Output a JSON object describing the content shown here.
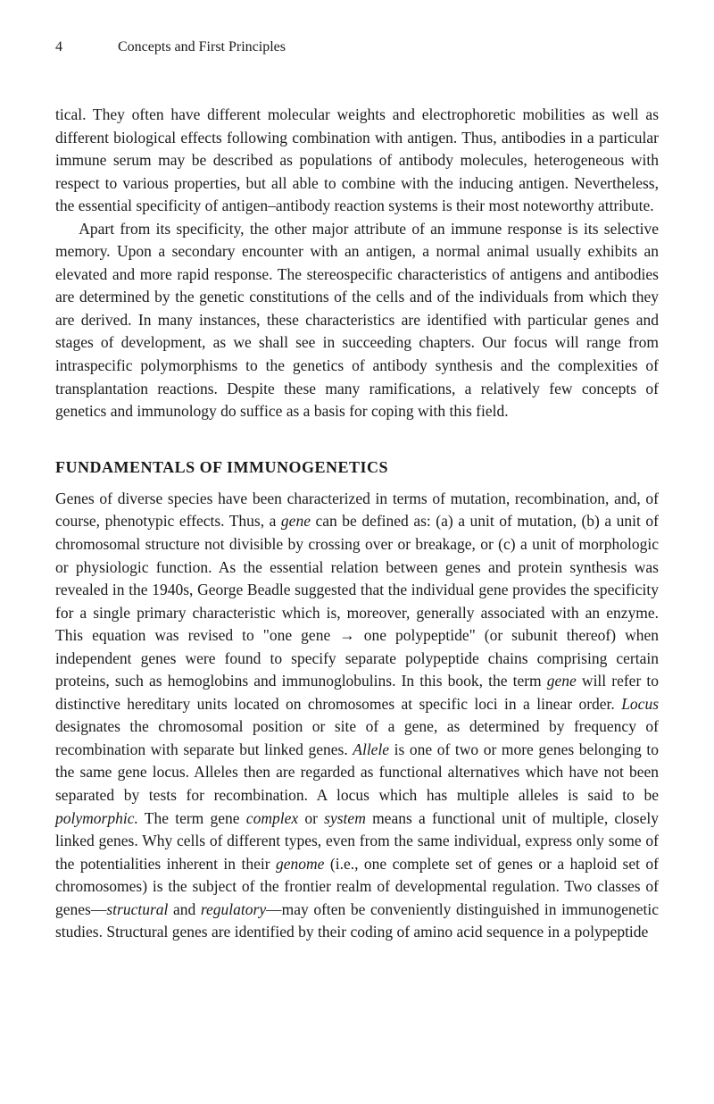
{
  "header": {
    "page_number": "4",
    "chapter_title": "Concepts and First Principles"
  },
  "content": {
    "para1_part1": "tical. They often have different molecular weights and electrophoretic mobilities as well as different biological effects following combination with antigen. Thus, antibodies in a particular immune serum may be described as populations of antibody molecules, heterogeneous with respect to various properties, but all able to combine with the inducing antigen. Nevertheless, the essential specificity of antigen–antibody reaction systems is their most noteworthy attribute.",
    "para2": "Apart from its specificity, the other major attribute of an immune response is its selective memory. Upon a secondary encounter with an antigen, a normal animal usually exhibits an elevated and more rapid response. The stereospecific characteristics of antigens and antibodies are determined by the genetic constitutions of the cells and of the individuals from which they are derived. In many instances, these characteristics are identified with particular genes and stages of development, as we shall see in succeeding chapters. Our focus will range from intraspecific polymorphisms to the genetics of antibody synthesis and the complexities of transplantation reactions. Despite these many ramifications, a relatively few concepts of genetics and immunology do suffice as a basis for coping with this field.",
    "heading1": "FUNDAMENTALS OF IMMUNOGENETICS",
    "para3_seg1": "Genes of diverse species have been characterized in terms of mutation, recombination, and, of course, phenotypic effects. Thus, a ",
    "para3_gene1": "gene",
    "para3_seg2": " can be defined as: (a) a unit of mutation, (b) a unit of chromosomal structure not divisible by crossing over or breakage, or (c) a unit of morphologic or physiologic function. As the essential relation between genes and protein synthesis was revealed in the 1940s, George Beadle suggested that the individual gene provides the specificity for a single primary characteristic which is, moreover, generally associated with an enzyme. This equation was revised to \"one gene → one polypeptide\" (or subunit thereof) when independent genes were found to specify separate polypeptide chains comprising certain proteins, such as hemoglobins and immunoglobulins. In this book, the term ",
    "para3_gene2": "gene",
    "para3_seg3": " will refer to distinctive hereditary units located on chromosomes at specific loci in a linear order. ",
    "para3_locus": "Locus",
    "para3_seg4": " designates the chromosomal position or site of a gene, as determined by frequency of recombination with separate but linked genes. ",
    "para3_allele": "Allele",
    "para3_seg5": " is one of two or more genes belonging to the same gene locus. Alleles then are regarded as functional alternatives which have not been separated by tests for recombination. A locus which has multiple alleles is said to be ",
    "para3_polymorphic": "polymorphic.",
    "para3_seg6": " The term gene ",
    "para3_complex": "complex",
    "para3_seg7": " or ",
    "para3_system": "system",
    "para3_seg8": " means a functional unit of multiple, closely linked genes. Why cells of different types, even from the same individual, express only some of the potentialities inherent in their ",
    "para3_genome": "genome",
    "para3_seg9": " (i.e., one complete set of genes or a haploid set of chromosomes) is the subject of the frontier realm of developmental regulation. Two classes of genes—",
    "para3_structural": "structural",
    "para3_seg10": " and ",
    "para3_regulatory": "regulatory",
    "para3_seg11": "—may often be conveniently distinguished in immunogenetic studies. Structural genes are identified by their coding of amino acid sequence in a polypeptide"
  },
  "styling": {
    "body_width": 800,
    "body_height": 1236,
    "background_color": "#ffffff",
    "text_color": "#1a1a1a",
    "body_font_size": 17.5,
    "heading_font_size": 18,
    "header_font_size": 16,
    "line_height": 1.46,
    "font_family": "Garamond, Georgia, Times New Roman, serif"
  }
}
